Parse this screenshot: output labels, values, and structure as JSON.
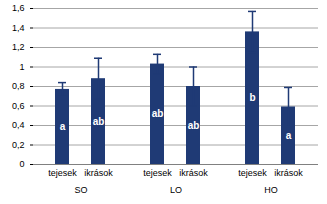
{
  "chart_data": {
    "type": "bar",
    "categories": [
      "tejesek",
      "ikrások",
      "tejesek",
      "ikrások",
      "tejesek",
      "ikrások"
    ],
    "groups": [
      "SO",
      "SO",
      "LO",
      "LO",
      "HO",
      "HO"
    ],
    "values": [
      0.77,
      0.88,
      1.03,
      0.8,
      1.36,
      0.59
    ],
    "errors": [
      0.07,
      0.21,
      0.1,
      0.2,
      0.21,
      0.2
    ],
    "annotations": [
      "a",
      "ab",
      "ab",
      "ab",
      "b",
      "a"
    ],
    "color": "#1f3a75",
    "ylim": [
      0,
      1.6
    ],
    "yticks": [
      0,
      {
        "value": 0.2,
        "label": "0,2"
      },
      {
        "value": 0.4,
        "label": "0,4"
      },
      {
        "value": 0.6,
        "label": "0,6"
      },
      {
        "value": 0.8,
        "label": "0,8"
      },
      1,
      {
        "value": 1.2,
        "label": "1,2"
      },
      {
        "value": 1.4,
        "label": "1,4"
      },
      {
        "value": 1.6,
        "label": "1,6"
      }
    ],
    "grid": true
  }
}
